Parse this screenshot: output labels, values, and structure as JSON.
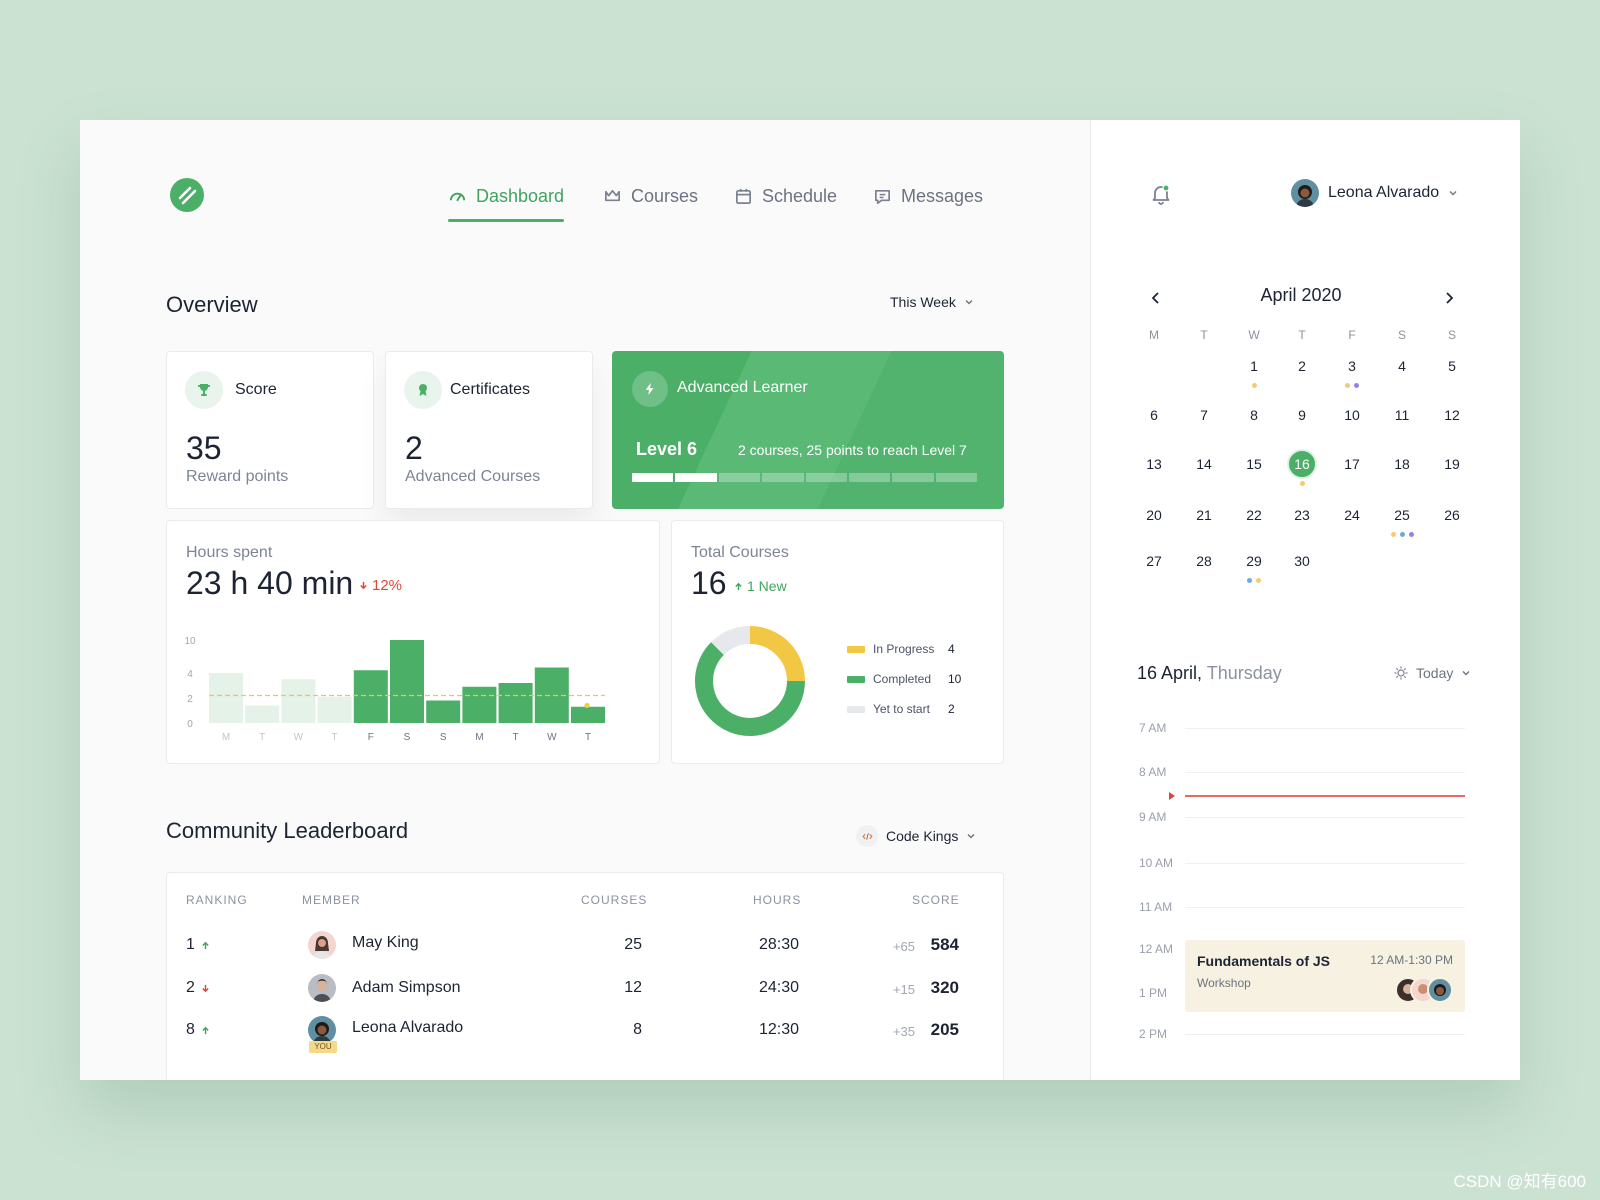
{
  "nav": {
    "items": [
      {
        "label": "Dashboard",
        "active": true,
        "icon": "gauge-icon"
      },
      {
        "label": "Courses",
        "active": false,
        "icon": "crown-icon"
      },
      {
        "label": "Schedule",
        "active": false,
        "icon": "calendar-icon"
      },
      {
        "label": "Messages",
        "active": false,
        "icon": "chat-icon"
      }
    ]
  },
  "user": {
    "name": "Leona Alvarado"
  },
  "overview": {
    "title": "Overview",
    "period": "This Week",
    "score": {
      "label": "Score",
      "value": "35",
      "sub": "Reward points"
    },
    "certificates": {
      "label": "Certificates",
      "value": "2",
      "sub": "Advanced Courses"
    },
    "learner": {
      "title": "Advanced Learner",
      "level": "Level 6",
      "note": "2 courses, 25 points to reach Level 7",
      "segments_total": 8,
      "segments_done": 2
    },
    "hours": {
      "label": "Hours spent",
      "value": "23 h 40 min",
      "delta": "12%",
      "delta_direction": "down"
    },
    "total_courses": {
      "label": "Total Courses",
      "value": "16",
      "new": "1 New"
    }
  },
  "chart_data": [
    {
      "type": "bar",
      "categories": [
        "M",
        "T",
        "W",
        "T",
        "F",
        "S",
        "S",
        "M",
        "T",
        "W",
        "T"
      ],
      "values": [
        4,
        1.4,
        3.5,
        2.1,
        4.5,
        10,
        1.8,
        2.9,
        3.2,
        5,
        1.3
      ],
      "current_week_start_index": 4,
      "average": 2.2,
      "y_ticks": [
        "0",
        "2",
        "4",
        "10"
      ],
      "y_tick_values": [
        0,
        2,
        4,
        10
      ],
      "grid": false,
      "colors": {
        "current": "#4caf68",
        "previous": "#e4f2e8",
        "average": "#f2c744"
      }
    },
    {
      "type": "pie",
      "donut": true,
      "labels": [
        "In Progress",
        "Completed",
        "Yet to start"
      ],
      "values": [
        4,
        10,
        2
      ],
      "colors": [
        "#f2c744",
        "#4caf68",
        "#e6e8ec"
      ],
      "legend": "right"
    }
  ],
  "leaderboard": {
    "title": "Community Leaderboard",
    "group": "Code Kings",
    "columns": [
      "RANKING",
      "MEMBER",
      "COURSES",
      "HOURS",
      "SCORE"
    ],
    "rows": [
      {
        "rank": "1",
        "trend": "up",
        "name": "May King",
        "courses": "25",
        "hours": "28:30",
        "delta": "+65",
        "score": "584"
      },
      {
        "rank": "2",
        "trend": "down",
        "name": "Adam Simpson",
        "courses": "12",
        "hours": "24:30",
        "delta": "+15",
        "score": "320"
      },
      {
        "rank": "8",
        "trend": "up",
        "name": "Leona Alvarado",
        "courses": "8",
        "hours": "12:30",
        "delta": "+35",
        "score": "205",
        "you": "YOU"
      }
    ]
  },
  "calendar": {
    "month": "April 2020",
    "weekdays": [
      "M",
      "T",
      "W",
      "T",
      "F",
      "S",
      "S"
    ],
    "first_weekday_index": 2,
    "days_in_month": 30,
    "selected": 16,
    "dots": {
      "1": [
        "#f5c97a"
      ],
      "3": [
        "#f5c97a",
        "#9b7fe0"
      ],
      "16": [
        "#f5c97a"
      ],
      "25": [
        "#f5c97a",
        "#6fa8dc",
        "#9b7fe0"
      ],
      "29": [
        "#6fa8dc",
        "#f5c97a"
      ]
    }
  },
  "agenda": {
    "date": "16 April,",
    "weekday": "Thursday",
    "filter": "Today",
    "times": [
      "7 AM",
      "8 AM",
      "9 AM",
      "10 AM",
      "11 AM",
      "12 AM",
      "1 PM",
      "2 PM"
    ],
    "event": {
      "title": "Fundamentals of JS",
      "type": "Workshop",
      "time": "12 AM-1:30 PM"
    }
  },
  "watermark": "CSDN @知有600"
}
